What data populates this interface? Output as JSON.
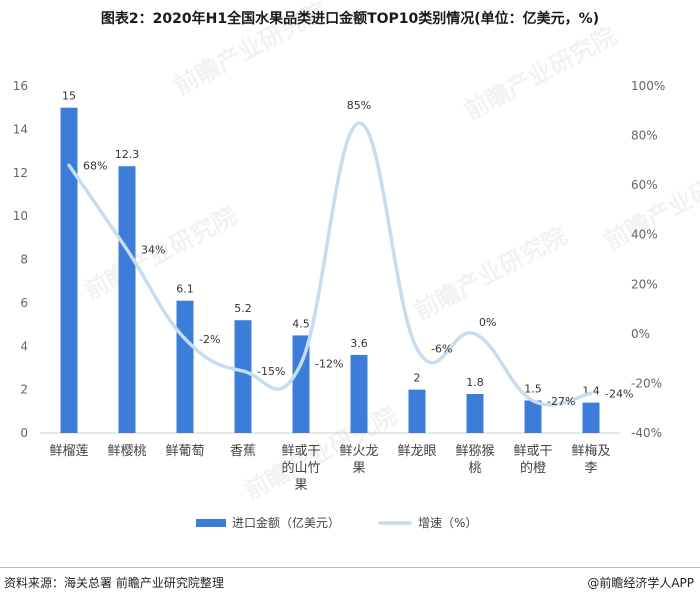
{
  "title": "图表2：2020年H1全国水果品类进口金额TOP10类别情况(单位：亿美元，%)",
  "source": "资料来源：海关总署 前瞻产业研究院整理",
  "credit": "@前瞻经济学人APP",
  "chart_data": {
    "type": "bar+line",
    "categories": [
      [
        "鲜榴莲"
      ],
      [
        "鲜樱桃"
      ],
      [
        "鲜葡萄"
      ],
      [
        "香蕉"
      ],
      [
        "鲜或干",
        "的山竹",
        "果"
      ],
      [
        "鲜火龙",
        "果"
      ],
      [
        "鲜龙眼"
      ],
      [
        "鲜猕猴",
        "桃"
      ],
      [
        "鲜或干",
        "的橙"
      ],
      [
        "鲜梅及",
        "李"
      ]
    ],
    "series": [
      {
        "name": "进口金额（亿美元）",
        "kind": "bar",
        "axis": "left",
        "color": "#3b7dd8",
        "values": [
          15,
          12.3,
          6.1,
          5.2,
          4.5,
          3.6,
          2,
          1.8,
          1.5,
          1.4
        ],
        "labels": [
          "15",
          "12.3",
          "6.1",
          "5.2",
          "4.5",
          "3.6",
          "2",
          "1.8",
          "1.5",
          "1.4"
        ]
      },
      {
        "name": "增速（%）",
        "kind": "line",
        "axis": "right",
        "color": "#c5dcf3",
        "values": [
          68,
          34,
          -2,
          -15,
          -12,
          85,
          -6,
          0,
          -27,
          -24
        ],
        "labels": [
          "68%",
          "34%",
          "-2%",
          "-15%",
          "-12%",
          "85%",
          "-6%",
          "0%",
          "-27%",
          "-24%"
        ]
      }
    ],
    "left_axis": {
      "min": 0,
      "max": 16,
      "ticks": [
        "0",
        "2",
        "4",
        "6",
        "8",
        "10",
        "12",
        "14",
        "16"
      ]
    },
    "right_axis": {
      "min": -40,
      "max": 100,
      "ticks": [
        "-40%",
        "-20%",
        "0%",
        "20%",
        "40%",
        "60%",
        "80%",
        "100%"
      ]
    },
    "legend": "bottom-center",
    "grid": false,
    "watermark": "前瞻产业研究院"
  }
}
